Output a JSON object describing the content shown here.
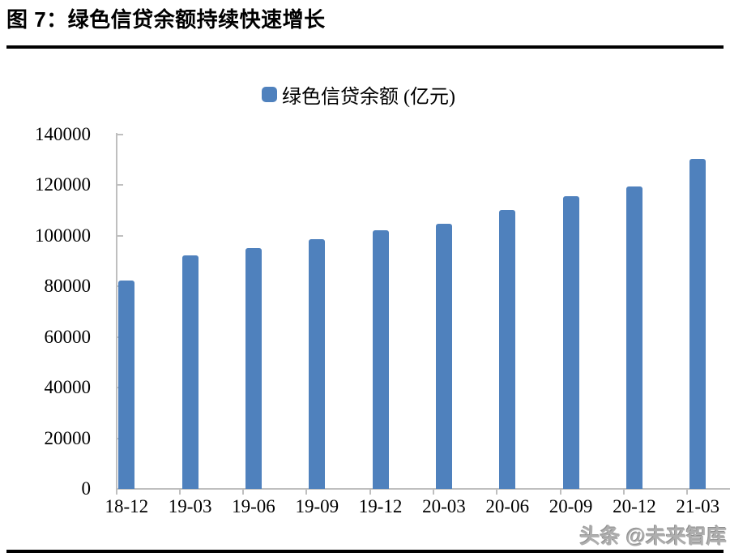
{
  "page": {
    "title": "图 7：绿色信贷余额持续快速增长",
    "watermark": "头条 @未来智库"
  },
  "legend": {
    "label": "绿色信贷余额 (亿元)"
  },
  "colors": {
    "bar": "#4F81BD",
    "axis": "#BFBFBF",
    "text": "#000000",
    "rule": "#000000",
    "watermark": "#AEAEAE"
  },
  "chart_data": {
    "type": "bar",
    "title": "图 7：绿色信贷余额持续快速增长",
    "series_name": "绿色信贷余额 (亿元)",
    "categories": [
      "18-12",
      "19-03",
      "19-06",
      "19-09",
      "19-12",
      "20-03",
      "20-06",
      "20-09",
      "20-12",
      "21-03"
    ],
    "values": [
      82300,
      92300,
      95000,
      98600,
      102200,
      104600,
      110100,
      115500,
      119500,
      130300
    ],
    "xlabel": "",
    "ylabel": "",
    "ylim": [
      0,
      140000
    ],
    "ytick_interval": 20000,
    "yticks": [
      0,
      20000,
      40000,
      60000,
      80000,
      100000,
      120000,
      140000
    ],
    "grid": false,
    "legend_position": "top-center",
    "bar_color": "#4F81BD"
  }
}
